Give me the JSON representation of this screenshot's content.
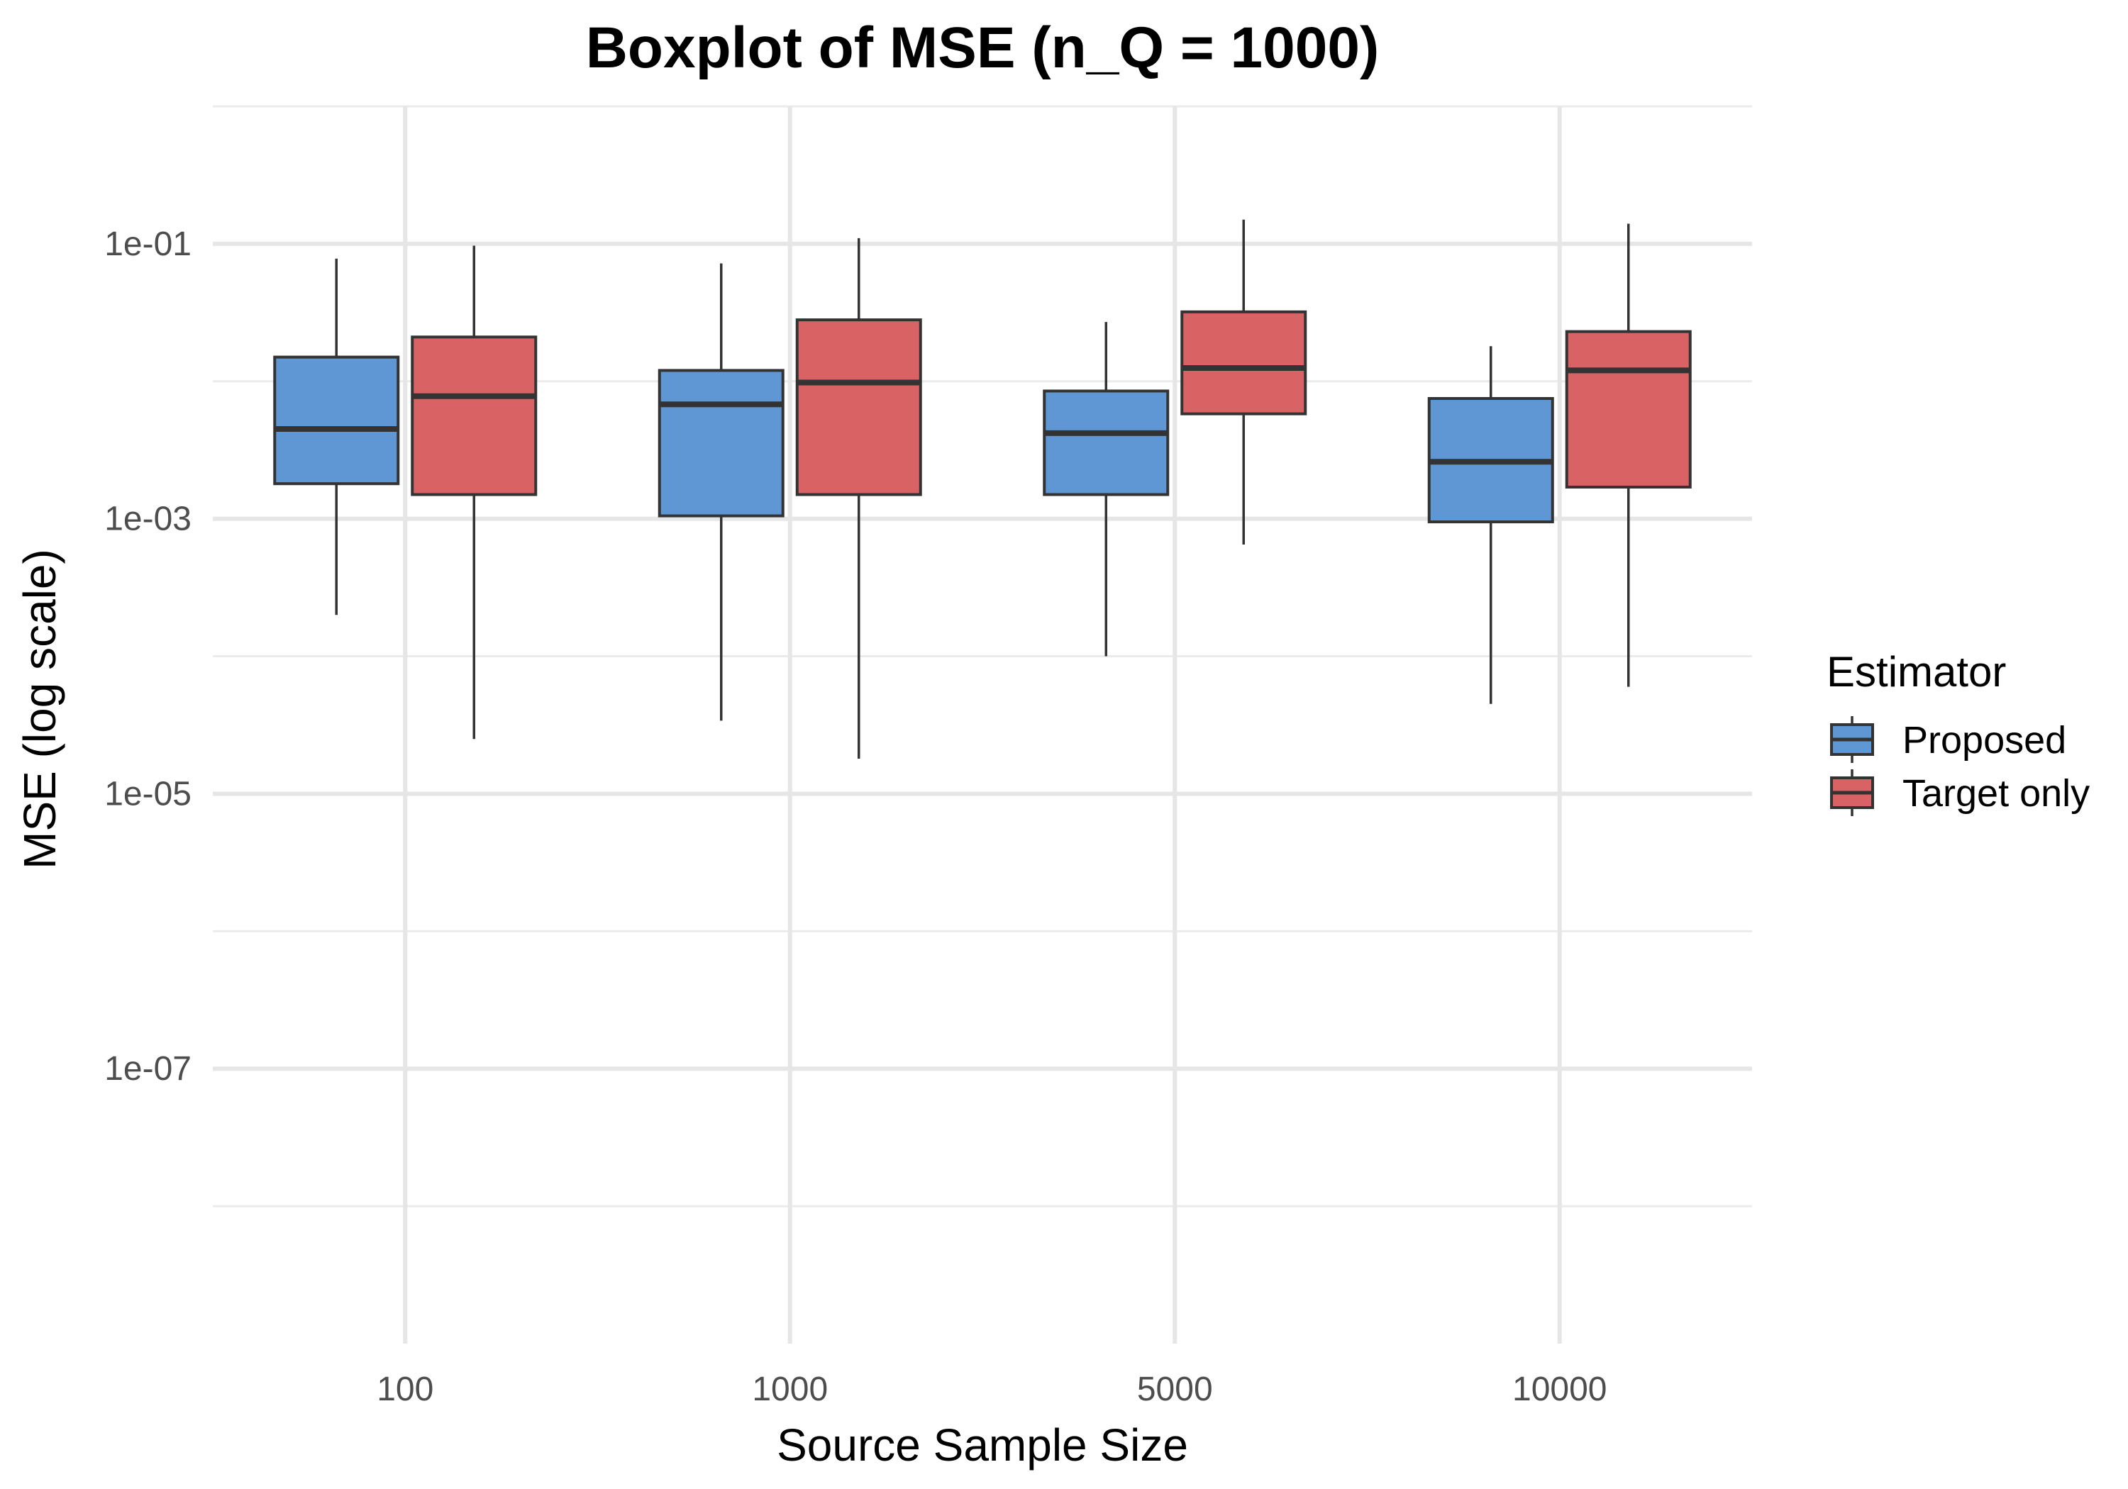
{
  "chart_data": {
    "type": "boxplot",
    "title": "Boxplot of MSE (n_Q = 1000)",
    "xlabel": "Source Sample Size",
    "ylabel": "MSE (log scale)",
    "y_scale": "log10",
    "ylim": [
      1e-09,
      1.0
    ],
    "y_ticks": [
      {
        "value": 0.1,
        "label": "1e-01"
      },
      {
        "value": 0.001,
        "label": "1e-03"
      },
      {
        "value": 1e-05,
        "label": "1e-05"
      },
      {
        "value": 1e-07,
        "label": "1e-07"
      }
    ],
    "categories": [
      "100",
      "1000",
      "5000",
      "10000"
    ],
    "legend": {
      "title": "Estimator",
      "position": "right"
    },
    "grid": true,
    "series": [
      {
        "name": "Proposed",
        "color": "#5e97d3",
        "boxes": [
          {
            "min": 0.0002,
            "q1": 0.0018,
            "median": 0.0045,
            "q3": 0.015,
            "max": 0.078
          },
          {
            "min": 3.4e-05,
            "q1": 0.00105,
            "median": 0.0068,
            "q3": 0.012,
            "max": 0.072
          },
          {
            "min": 0.0001,
            "q1": 0.0015,
            "median": 0.0042,
            "q3": 0.0085,
            "max": 0.027
          },
          {
            "min": 4.5e-05,
            "q1": 0.00095,
            "median": 0.0026,
            "q3": 0.0075,
            "max": 0.018
          }
        ]
      },
      {
        "name": "Target only",
        "color": "#d96264",
        "boxes": [
          {
            "min": 2.5e-05,
            "q1": 0.0015,
            "median": 0.0078,
            "q3": 0.021,
            "max": 0.097
          },
          {
            "min": 1.8e-05,
            "q1": 0.0015,
            "median": 0.0098,
            "q3": 0.028,
            "max": 0.11
          },
          {
            "min": 0.00065,
            "q1": 0.0058,
            "median": 0.0125,
            "q3": 0.032,
            "max": 0.15
          },
          {
            "min": 6e-05,
            "q1": 0.0017,
            "median": 0.012,
            "q3": 0.023,
            "max": 0.14
          }
        ]
      }
    ]
  }
}
